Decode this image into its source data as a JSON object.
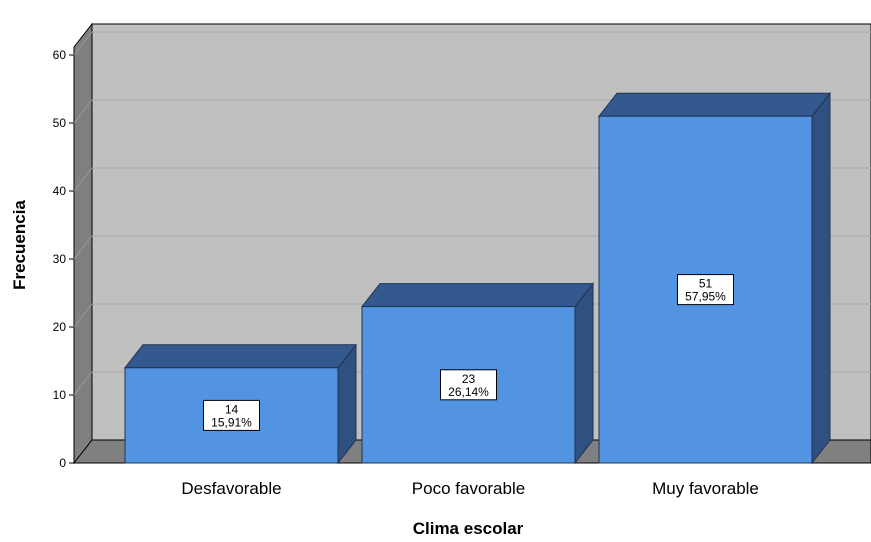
{
  "chart_data": {
    "type": "bar",
    "style": "3d",
    "categories": [
      "Desfavorable",
      "Poco favorable",
      "Muy favorable"
    ],
    "values": [
      14,
      23,
      51
    ],
    "percent_labels": [
      "15,91%",
      "26,14%",
      "57,95%"
    ],
    "xlabel": "Clima escolar",
    "ylabel": "Frecuencia",
    "ylim": [
      0,
      60
    ],
    "yticks": [
      0,
      10,
      20,
      30,
      40,
      50,
      60
    ],
    "grid": true,
    "colors": {
      "bar_front": "#5294e2",
      "bar_top": "#34598f",
      "bar_side": "#2f5080",
      "wall": "#c0c0c0",
      "wall_side": "#7f7f7f",
      "floor": "#808080"
    }
  }
}
